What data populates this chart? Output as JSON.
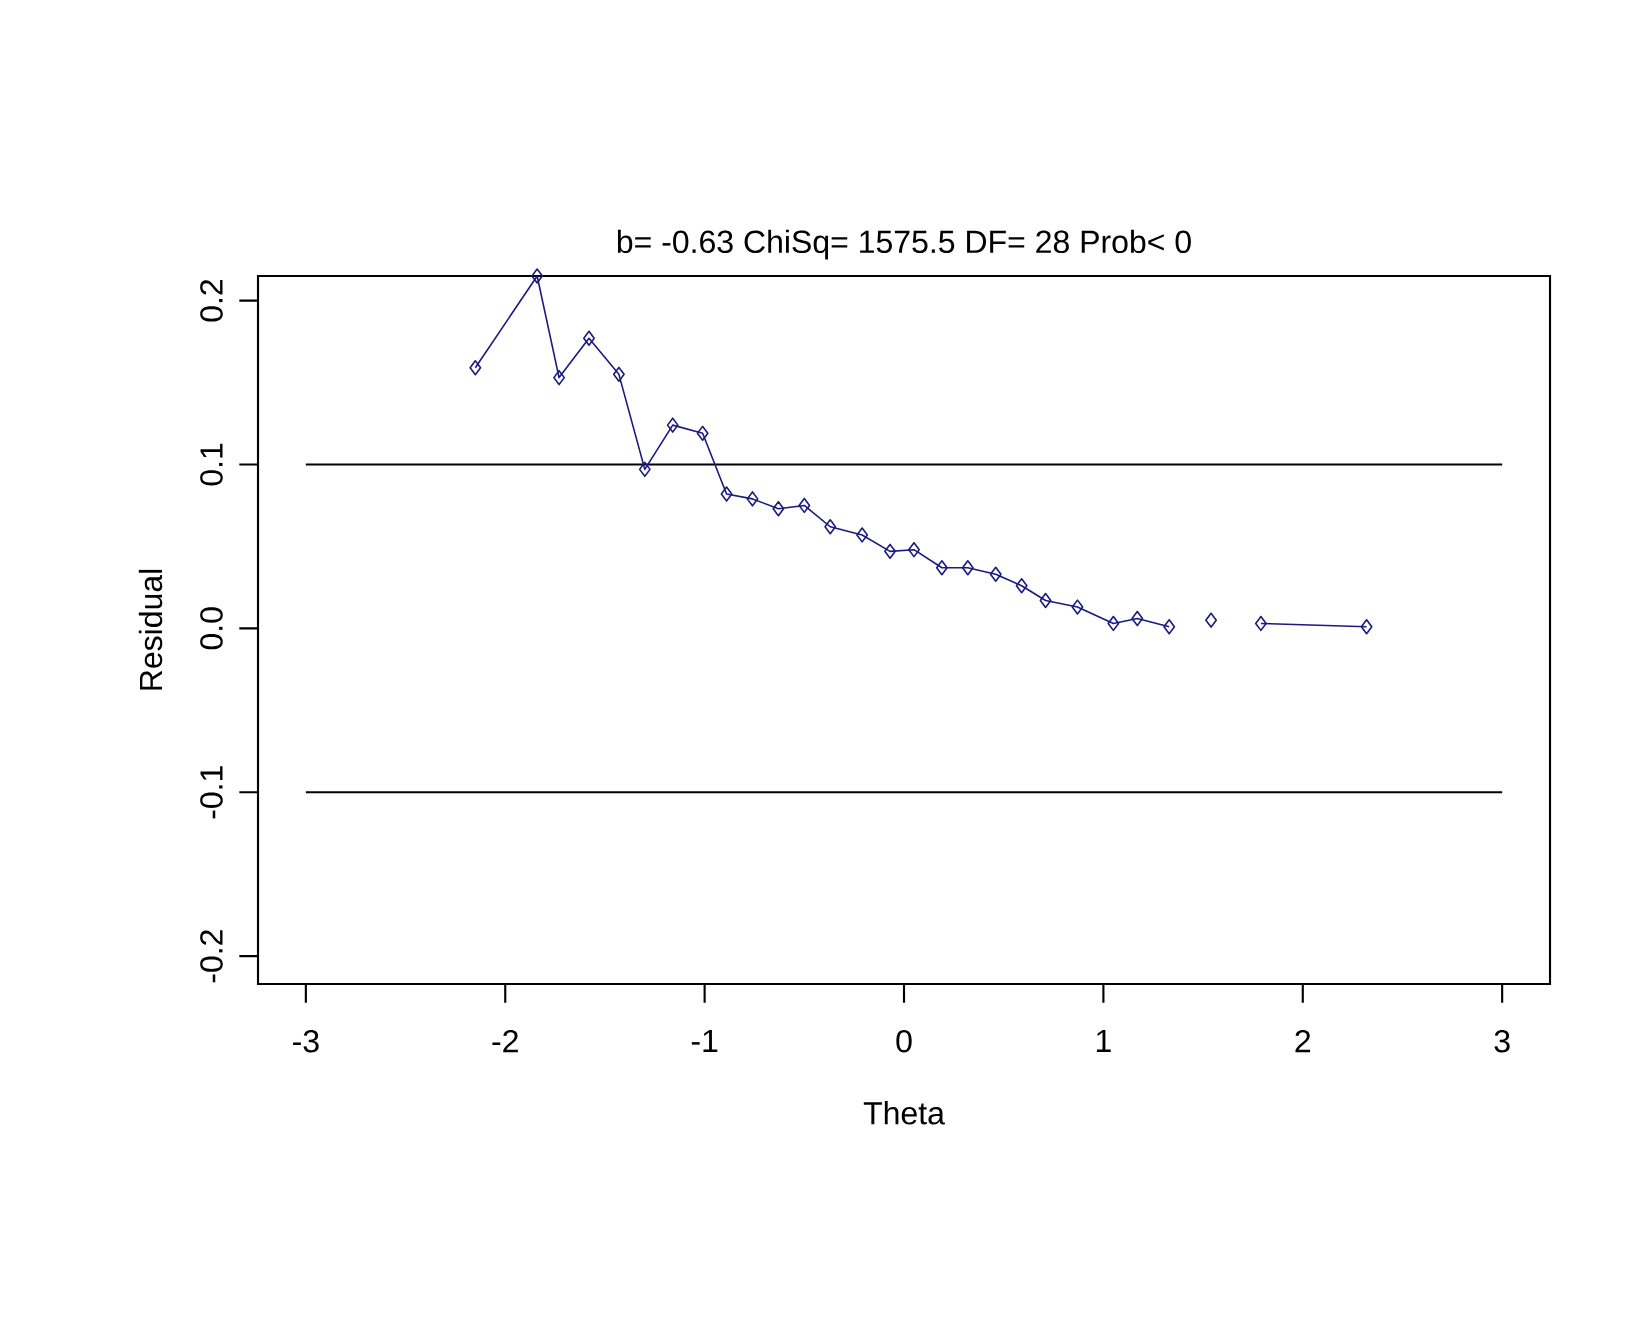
{
  "chart_data": {
    "type": "line",
    "title": "b= -0.63  ChiSq= 1575.5  DF= 28  Prob< 0",
    "xlabel": "Theta",
    "ylabel": "Residual",
    "xlim": [
      -3.24,
      3.24
    ],
    "ylim": [
      -0.217,
      0.215
    ],
    "xticks": [
      -3,
      -2,
      -1,
      0,
      1,
      2,
      3
    ],
    "yticks": [
      {
        "value": -0.2,
        "label": "-0.2"
      },
      {
        "value": -0.1,
        "label": "-0.1"
      },
      {
        "value": 0,
        "label": "0.0"
      },
      {
        "value": 0.1,
        "label": "0.1"
      },
      {
        "value": 0.2,
        "label": "0.2"
      }
    ],
    "marker": "diamond",
    "line_style": "solid",
    "ref_lines": [
      {
        "axis": "y",
        "value": 0.1,
        "color": "#000000"
      },
      {
        "axis": "y",
        "value": -0.1,
        "color": "#000000"
      }
    ],
    "series": [
      {
        "color": "#1a1a80",
        "x": [
          -2.15,
          -1.84,
          -1.73,
          -1.58,
          -1.43,
          -1.3,
          -1.16,
          -1.01,
          -0.89,
          -0.76,
          -0.63,
          -0.5,
          -0.37,
          -0.21,
          -0.07,
          0.05,
          0.19,
          0.32,
          0.46,
          0.59,
          0.71,
          0.87,
          1.05,
          1.17,
          1.33
        ],
        "values": [
          0.159,
          0.215,
          0.153,
          0.177,
          0.155,
          0.097,
          0.124,
          0.119,
          0.082,
          0.079,
          0.073,
          0.075,
          0.062,
          0.057,
          0.047,
          0.048,
          0.037,
          0.037,
          0.033,
          0.026,
          0.017,
          0.013,
          0.003,
          0.006,
          0.001
        ]
      },
      {
        "color": "#1a1a80",
        "x": [
          1.54
        ],
        "values": [
          0.005
        ]
      },
      {
        "color": "#1a1a80",
        "x": [
          1.79,
          2.32
        ],
        "values": [
          0.003,
          0.001
        ]
      }
    ]
  }
}
